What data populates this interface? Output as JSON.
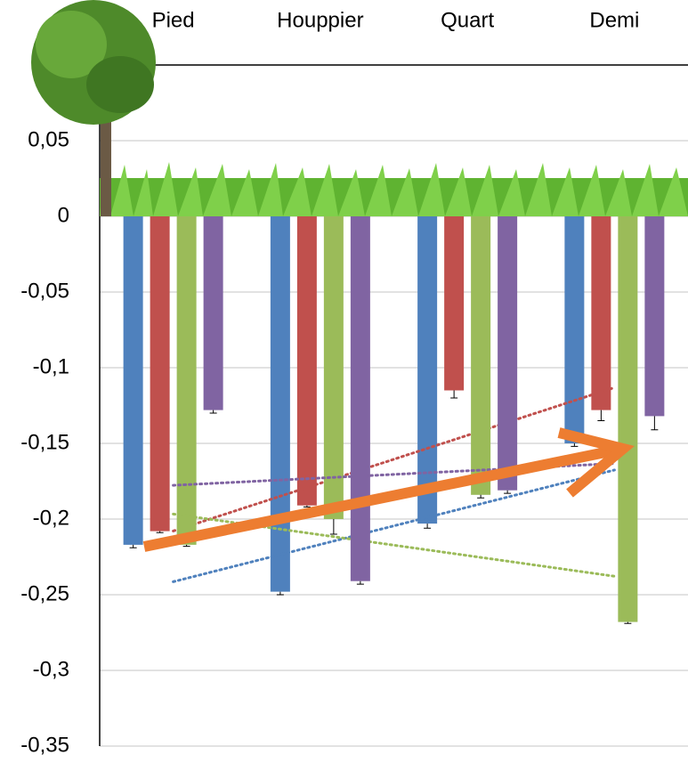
{
  "chart_data": {
    "type": "bar",
    "categories": [
      "Pied",
      "Houppier",
      "Quart",
      "Demi"
    ],
    "series": [
      {
        "color": "#4f81bd",
        "values": [
          -0.217,
          -0.248,
          -0.203,
          -0.15
        ],
        "errors": [
          0.002,
          0.002,
          0.003,
          0.002
        ]
      },
      {
        "color": "#c0504d",
        "values": [
          -0.208,
          -0.191,
          -0.115,
          -0.128
        ],
        "errors": [
          0.001,
          0.001,
          0.005,
          0.007
        ]
      },
      {
        "color": "#9bbb59",
        "values": [
          -0.217,
          -0.2,
          -0.184,
          -0.268
        ],
        "errors": [
          0.001,
          0.01,
          0.002,
          0.001
        ]
      },
      {
        "color": "#8064a2",
        "values": [
          -0.128,
          -0.241,
          -0.181,
          -0.132
        ],
        "errors": [
          0.002,
          0.002,
          0.002,
          0.009
        ]
      }
    ],
    "trendlines": true,
    "ylim": [
      -0.35,
      0.1
    ],
    "yticks": [
      {
        "value": -0.35,
        "label": "-0,35"
      },
      {
        "value": -0.3,
        "label": "-0,3"
      },
      {
        "value": -0.25,
        "label": "-0,25"
      },
      {
        "value": -0.2,
        "label": "-0,2"
      },
      {
        "value": -0.15,
        "label": "-0,15"
      },
      {
        "value": -0.1,
        "label": "-0,1"
      },
      {
        "value": -0.05,
        "label": "-0,05"
      },
      {
        "value": 0,
        "label": "0"
      },
      {
        "value": 0.05,
        "label": "0,05"
      }
    ],
    "grid": true
  }
}
